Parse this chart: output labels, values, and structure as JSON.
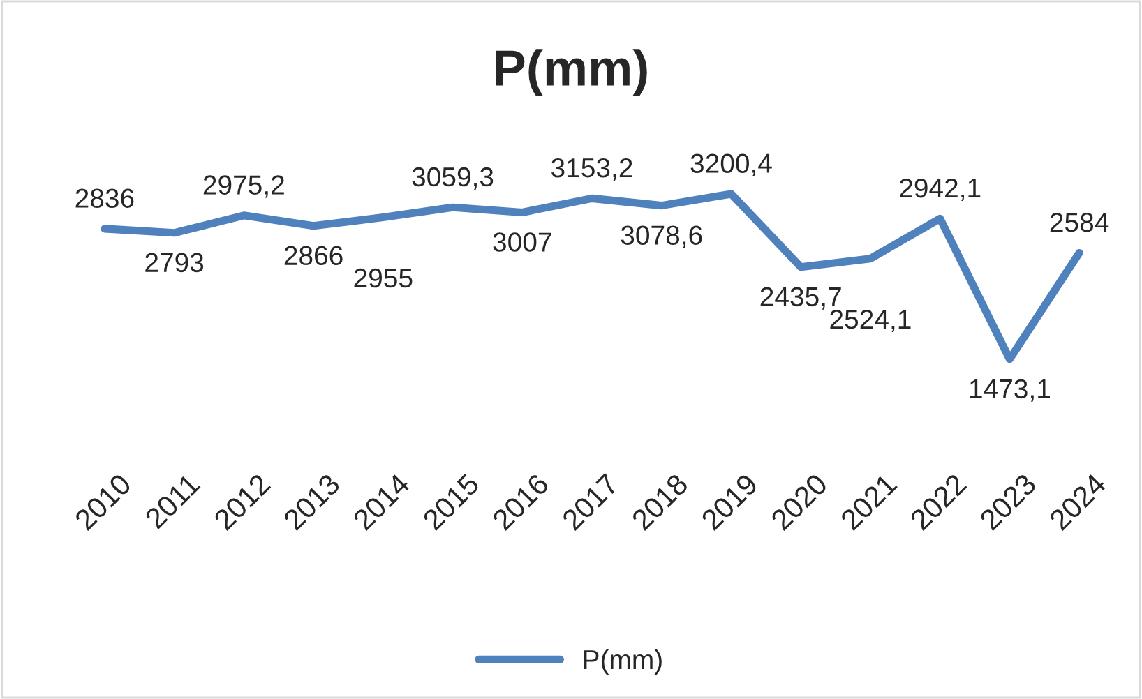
{
  "chart_data": {
    "type": "line",
    "title": "P(mm)",
    "categories": [
      "2010",
      "2011",
      "2012",
      "2013",
      "2014",
      "2015",
      "2016",
      "2017",
      "2018",
      "2019",
      "2020",
      "2021",
      "2022",
      "2023",
      "2024"
    ],
    "series": [
      {
        "name": "P(mm)",
        "color": "#4f81bd",
        "values": [
          2836,
          2793,
          2975.2,
          2866,
          2955,
          3059.3,
          3007,
          3153.2,
          3078.6,
          3200.4,
          2435.7,
          2524.1,
          2942.1,
          1473.1,
          2584
        ],
        "value_labels": [
          "2836",
          "2793",
          "2975,2",
          "2866",
          "2955",
          "3059,3",
          "3007",
          "3153,2",
          "3078,6",
          "3200,4",
          "2435,7",
          "2524,1",
          "2942,1",
          "1473,1",
          "2584"
        ]
      }
    ],
    "legend": "bottom",
    "grid": false,
    "marker": "none",
    "line_style": "solid"
  }
}
